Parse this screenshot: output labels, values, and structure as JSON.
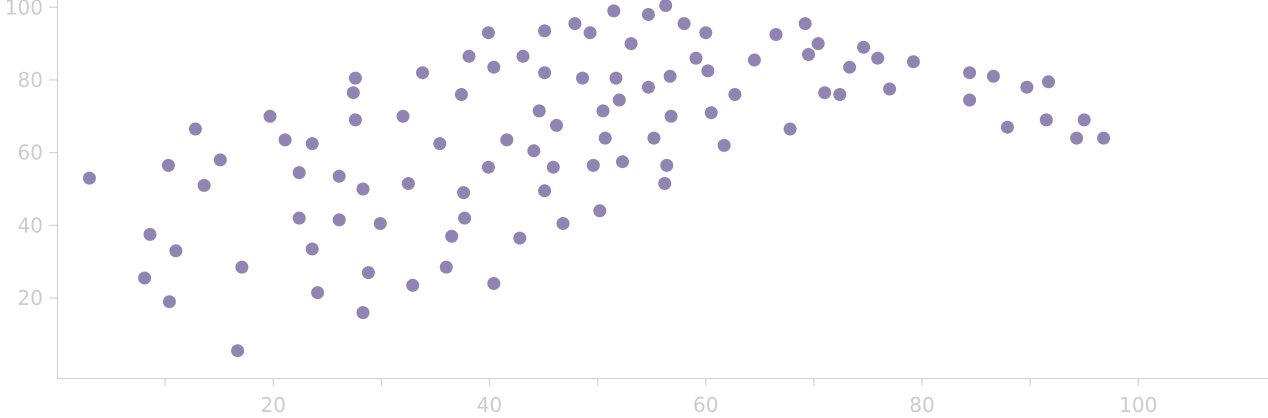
{
  "chart_data": {
    "type": "scatter",
    "title": "",
    "xlabel": "",
    "ylabel": "",
    "xlim": [
      0,
      112
    ],
    "ylim": [
      -2,
      102
    ],
    "xticks": [
      {
        "value": 10,
        "label": ""
      },
      {
        "value": 20,
        "label": "20"
      },
      {
        "value": 30,
        "label": ""
      },
      {
        "value": 40,
        "label": "40"
      },
      {
        "value": 50,
        "label": ""
      },
      {
        "value": 60,
        "label": "60"
      },
      {
        "value": 70,
        "label": ""
      },
      {
        "value": 80,
        "label": "80"
      },
      {
        "value": 90,
        "label": ""
      },
      {
        "value": 100,
        "label": "100"
      }
    ],
    "yticks": [
      {
        "value": 20,
        "label": "20"
      },
      {
        "value": 40,
        "label": "40"
      },
      {
        "value": 60,
        "label": "60"
      },
      {
        "value": 80,
        "label": "80"
      },
      {
        "value": 100,
        "label": "100"
      }
    ],
    "grid": false,
    "legend": "none",
    "colors": {
      "point": "#9184b3",
      "axis": "#d4d4d4",
      "tick_label": "#cccccc"
    },
    "series": [
      {
        "points": [
          [
            3.0,
            53
          ],
          [
            8.1,
            25.5
          ],
          [
            8.6,
            37.5
          ],
          [
            10.3,
            56.5
          ],
          [
            10.4,
            19
          ],
          [
            11.0,
            33
          ],
          [
            12.8,
            66.5
          ],
          [
            13.6,
            51
          ],
          [
            15.1,
            58
          ],
          [
            16.7,
            5.5
          ],
          [
            17.1,
            28.5
          ],
          [
            19.7,
            70
          ],
          [
            21.1,
            63.5
          ],
          [
            22.4,
            54.5
          ],
          [
            22.4,
            42
          ],
          [
            23.6,
            33.5
          ],
          [
            23.6,
            62.5
          ],
          [
            24.1,
            21.5
          ],
          [
            26.1,
            53.5
          ],
          [
            26.1,
            41.5
          ],
          [
            27.4,
            76.5
          ],
          [
            27.6,
            69
          ],
          [
            27.6,
            80.5
          ],
          [
            28.3,
            50
          ],
          [
            28.3,
            16
          ],
          [
            28.8,
            27
          ],
          [
            29.9,
            40.5
          ],
          [
            32.0,
            70
          ],
          [
            32.5,
            51.5
          ],
          [
            32.9,
            23.5
          ],
          [
            33.8,
            82
          ],
          [
            35.4,
            62.5
          ],
          [
            36.0,
            28.5
          ],
          [
            36.5,
            37
          ],
          [
            37.4,
            76
          ],
          [
            37.6,
            49
          ],
          [
            37.7,
            42
          ],
          [
            38.1,
            86.5
          ],
          [
            39.9,
            93
          ],
          [
            39.9,
            56
          ],
          [
            40.4,
            83.5
          ],
          [
            40.4,
            24
          ],
          [
            41.6,
            63.5
          ],
          [
            42.8,
            36.5
          ],
          [
            43.1,
            86.5
          ],
          [
            44.1,
            60.5
          ],
          [
            44.6,
            71.5
          ],
          [
            45.1,
            49.5
          ],
          [
            45.1,
            82
          ],
          [
            45.1,
            93.5
          ],
          [
            45.9,
            56
          ],
          [
            46.2,
            67.5
          ],
          [
            46.8,
            40.5
          ],
          [
            47.9,
            95.5
          ],
          [
            48.6,
            80.5
          ],
          [
            49.3,
            93
          ],
          [
            49.6,
            56.5
          ],
          [
            50.2,
            44
          ],
          [
            50.5,
            71.5
          ],
          [
            50.7,
            64
          ],
          [
            51.5,
            99
          ],
          [
            51.7,
            80.5
          ],
          [
            52.0,
            74.5
          ],
          [
            52.3,
            57.5
          ],
          [
            53.1,
            90
          ],
          [
            54.7,
            98
          ],
          [
            54.7,
            78
          ],
          [
            55.2,
            64
          ],
          [
            56.2,
            51.5
          ],
          [
            56.3,
            100.5
          ],
          [
            56.4,
            56.5
          ],
          [
            56.7,
            81
          ],
          [
            56.8,
            70
          ],
          [
            58.0,
            95.5
          ],
          [
            59.1,
            86
          ],
          [
            60.0,
            93
          ],
          [
            60.2,
            82.5
          ],
          [
            60.5,
            71
          ],
          [
            61.7,
            62
          ],
          [
            62.7,
            76
          ],
          [
            64.5,
            85.5
          ],
          [
            66.5,
            92.5
          ],
          [
            67.8,
            66.5
          ],
          [
            69.2,
            95.5
          ],
          [
            69.5,
            87
          ],
          [
            70.4,
            90
          ],
          [
            71.0,
            76.5
          ],
          [
            72.4,
            76
          ],
          [
            73.3,
            83.5
          ],
          [
            74.6,
            89
          ],
          [
            75.9,
            86
          ],
          [
            77.0,
            77.5
          ],
          [
            79.2,
            85
          ],
          [
            84.4,
            82
          ],
          [
            84.4,
            74.5
          ],
          [
            86.6,
            81
          ],
          [
            87.9,
            67
          ],
          [
            89.7,
            78
          ],
          [
            91.5,
            69
          ],
          [
            91.7,
            79.5
          ],
          [
            94.3,
            64
          ],
          [
            95.0,
            69
          ],
          [
            96.8,
            64
          ]
        ]
      }
    ]
  }
}
